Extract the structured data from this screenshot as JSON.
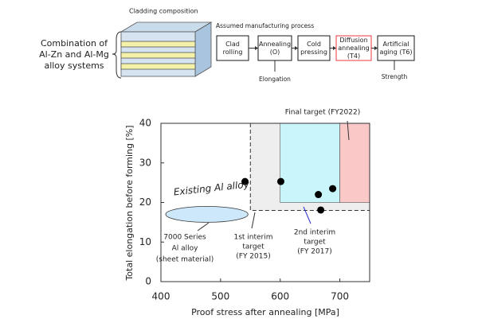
{
  "diagram": {
    "cladding_label": "Cladding composition",
    "combination_lines": [
      "Combination of",
      "Al-Zn and Al-Mg",
      "alloy systems"
    ],
    "process_label": "Assumed manufacturing process",
    "steps": [
      {
        "lines": [
          "Clad",
          "rolling"
        ],
        "color": "#000000"
      },
      {
        "lines": [
          "Annealing",
          "(O)"
        ],
        "color": "#000000"
      },
      {
        "lines": [
          "Cold",
          "pressing"
        ],
        "color": "#000000"
      },
      {
        "lines": [
          "Diffusion",
          "annealing",
          "(T4)"
        ],
        "color": "#e8262b"
      },
      {
        "lines": [
          "Artificial",
          "aging (T6)"
        ],
        "color": "#000000"
      }
    ],
    "elongation_note": "Elongation",
    "strength_note": "Strength"
  },
  "chart_data": {
    "type": "scatter",
    "x_label": "Proof stress after annealing [MPa]",
    "y_label": "Total elongation before forming [%]",
    "xlim": [
      400,
      750
    ],
    "ylim": [
      0,
      40
    ],
    "xticks": [
      400,
      500,
      600,
      700
    ],
    "yticks": [
      0,
      10,
      20,
      30,
      40
    ],
    "series": [
      {
        "color": "#000000",
        "x": [
          541,
          601,
          664,
          688,
          668
        ],
        "values": [
          25.3,
          25.3,
          22,
          23.5,
          18.1
        ]
      }
    ],
    "regions": [
      {
        "x": [
          550,
          750
        ],
        "y": [
          18,
          40
        ],
        "color": "#eeeeee"
      },
      {
        "x": [
          600,
          700
        ],
        "y": [
          20,
          40
        ],
        "color": "#c8f6fa"
      },
      {
        "x": [
          700,
          750
        ],
        "y": [
          20,
          40
        ],
        "color": "#fbc8c8"
      }
    ],
    "existing_alloy": {
      "cx": 477,
      "cy": 17,
      "rx": 69,
      "ry": 2,
      "color": "#cde8fa"
    },
    "annotations": {
      "final": {
        "lines": [
          "Final target (FY2022)"
        ],
        "color": "#e8262b"
      },
      "existing": {
        "lines": [
          "Existing Al alloy"
        ],
        "color": "#000000"
      },
      "series7000": {
        "lines": [
          "7000 Series",
          "Al alloy",
          "(sheet material)"
        ],
        "color": "#000000"
      },
      "first": {
        "lines": [
          "1st interim",
          "target",
          "(FY 2015)"
        ],
        "color": "#000000"
      },
      "second": {
        "lines": [
          "2nd interim",
          "target",
          "(FY 2017)"
        ],
        "color": "#2a2ad0"
      }
    }
  }
}
